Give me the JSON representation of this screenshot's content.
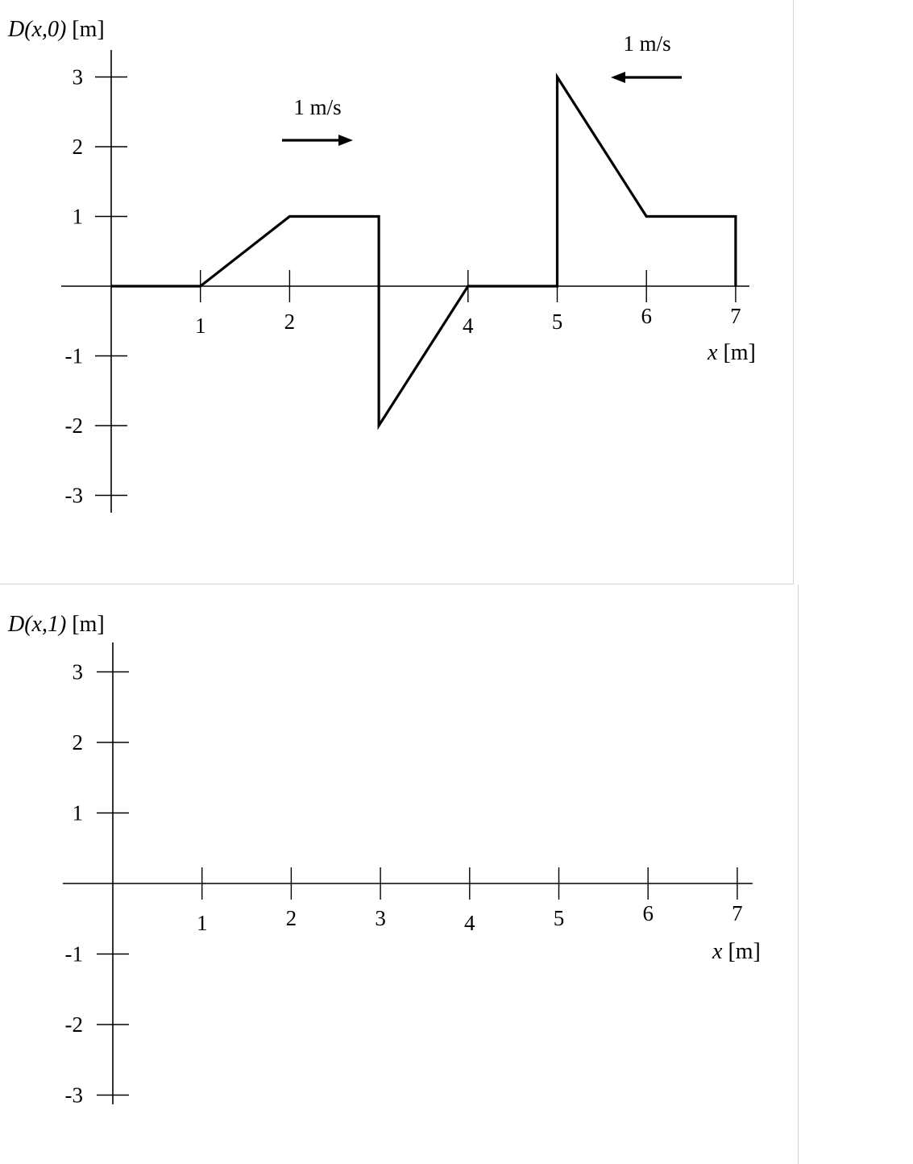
{
  "chart_data": [
    {
      "type": "line",
      "ylabel_fn": "D(x,0)",
      "ylabel_unit": " [m]",
      "xlabel_var": "x",
      "xlabel_unit": " [m]",
      "xlim": [
        0,
        7
      ],
      "ylim": [
        -3,
        3
      ],
      "x_ticks": [
        1,
        2,
        3,
        4,
        5,
        6,
        7
      ],
      "x_tick_labels": [
        "1",
        "2",
        "",
        "4",
        "5",
        "6",
        "7"
      ],
      "y_ticks": [
        3,
        2,
        1,
        -1,
        -2,
        -3
      ],
      "y_tick_labels": [
        "3",
        "2",
        "1",
        "-1",
        "-2",
        "-3"
      ],
      "series": [
        {
          "x": [
            0,
            1,
            2,
            3,
            3,
            4,
            5,
            5,
            6,
            7,
            7
          ],
          "y": [
            0,
            0,
            1,
            1,
            -2,
            0,
            0,
            3,
            1,
            1,
            0
          ]
        }
      ],
      "annotations": [
        {
          "text": "1 m/s",
          "direction": "right"
        },
        {
          "text": "1 m/s",
          "direction": "left"
        }
      ],
      "color": "#000000"
    },
    {
      "type": "line",
      "ylabel_fn": "D(x,1)",
      "ylabel_unit": " [m]",
      "xlabel_var": "x",
      "xlabel_unit": " [m]",
      "xlim": [
        0,
        7
      ],
      "ylim": [
        -3,
        3
      ],
      "x_ticks": [
        1,
        2,
        3,
        4,
        5,
        6,
        7
      ],
      "x_tick_labels": [
        "1",
        "2",
        "3",
        "4",
        "5",
        "6",
        "7"
      ],
      "y_ticks": [
        3,
        2,
        1,
        -1,
        -2,
        -3
      ],
      "y_tick_labels": [
        "3",
        "2",
        "1",
        "-1",
        "-2",
        "-3"
      ],
      "series": [],
      "color": "#000000"
    }
  ]
}
